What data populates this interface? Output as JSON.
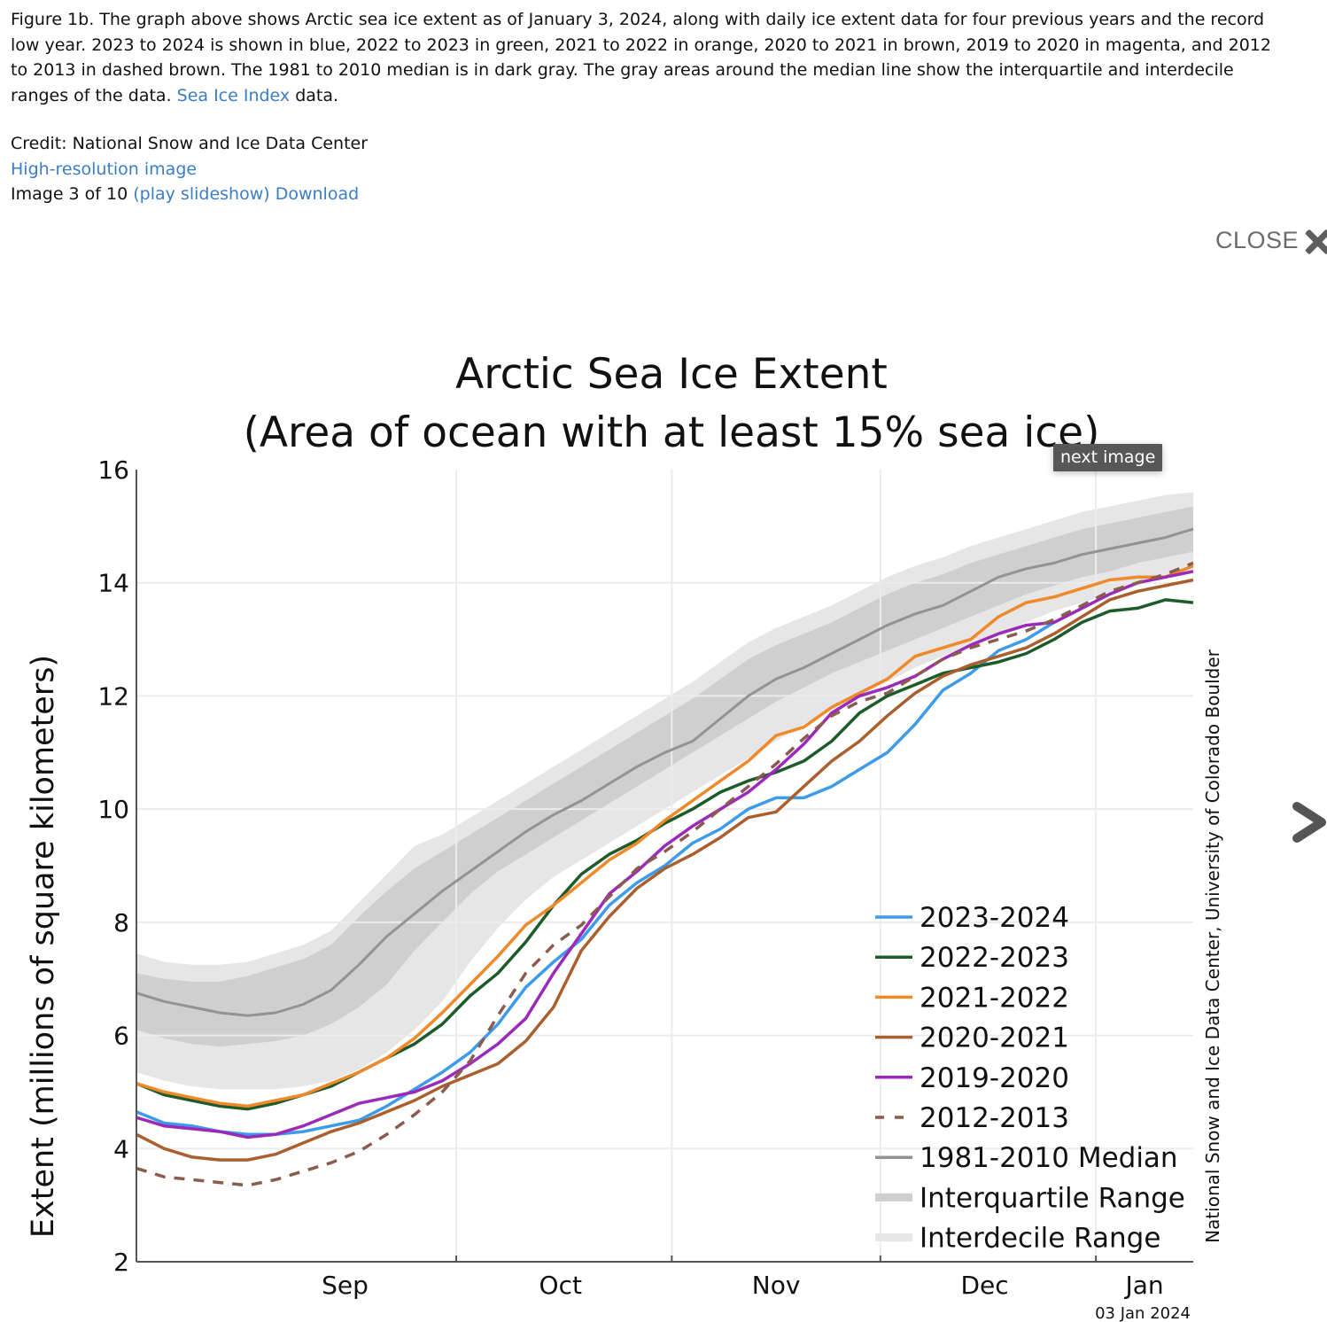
{
  "caption": {
    "text_before_link": "Figure 1b. The graph above shows Arctic sea ice extent as of January 3, 2024, along with daily ice extent data for four previous years and the record low year. 2023 to 2024 is shown in blue, 2022 to 2023 in green, 2021 to 2022 in orange, 2020 to 2021 in brown, 2019 to 2020 in magenta, and 2012 to 2013 in dashed brown. The 1981 to 2010 median is in dark gray. The gray areas around the median line show the interquartile and interdecile ranges of the data. ",
    "link_label": "Sea Ice Index",
    "text_after_link": " data."
  },
  "credit": {
    "line": "Credit: National Snow and Ice Data Center",
    "high_res_link": "High-resolution image",
    "image_counter": "Image 3 of 10",
    "slideshow_link": "(play slideshow)",
    "download_link": "Download"
  },
  "viewer": {
    "close_label": "CLOSE",
    "close_icon": "close-x-icon",
    "next_icon": "chevron-right-icon",
    "tooltip": "next image"
  },
  "colors": {
    "s2023": "#3d9be9",
    "s2022": "#1d5b2a",
    "s2021": "#f0892a",
    "s2020": "#aa5f2f",
    "s2019": "#9b2ab8",
    "s2012": "#8a5c4f",
    "median": "#939393",
    "iqr": "#cfcfcf",
    "idr": "#e6e6e6",
    "link": "#3a7dc9"
  },
  "chart_data": {
    "type": "line",
    "title": "Arctic Sea Ice Extent",
    "subtitle": "(Area of ocean with at least 15% sea ice)",
    "xlabel": "",
    "ylabel": "Extent (millions of square kilometers)",
    "x_unit": "days since Sep 1",
    "xlim": [
      -16,
      136
    ],
    "ylim": [
      2,
      16
    ],
    "yticks": [
      2,
      4,
      6,
      8,
      10,
      12,
      14,
      16
    ],
    "xtick_boundaries": [
      30,
      61,
      91,
      122
    ],
    "month_labels": [
      {
        "label": "Sep",
        "center": 14
      },
      {
        "label": "Oct",
        "center": 45
      },
      {
        "label": "Nov",
        "center": 76
      },
      {
        "label": "Dec",
        "center": 106
      },
      {
        "label": "Jan",
        "center": 129
      }
    ],
    "grid": true,
    "legend_position": "lower-right",
    "date_stamp": "03 Jan 2024",
    "source_credit": "National Snow and Ice Data Center, University of Colorado Boulder",
    "x": [
      -16,
      -12,
      -8,
      -4,
      0,
      4,
      8,
      12,
      16,
      20,
      24,
      28,
      32,
      36,
      40,
      44,
      48,
      52,
      56,
      60,
      64,
      68,
      72,
      76,
      80,
      84,
      88,
      92,
      96,
      100,
      104,
      108,
      112,
      116,
      120,
      124,
      128,
      132,
      136
    ],
    "bands": {
      "interdecile": {
        "name": "Interdecile Range",
        "lower": [
          5.35,
          5.2,
          5.1,
          5.05,
          5.05,
          5.05,
          5.1,
          5.2,
          5.4,
          5.7,
          6.1,
          6.6,
          7.3,
          7.9,
          8.4,
          8.8,
          9.1,
          9.4,
          9.7,
          10.0,
          10.3,
          10.6,
          10.9,
          11.2,
          11.5,
          11.75,
          12.0,
          12.25,
          12.5,
          12.7,
          12.9,
          13.1,
          13.3,
          13.5,
          13.65,
          13.8,
          13.95,
          14.1,
          14.25
        ],
        "upper": [
          7.45,
          7.3,
          7.25,
          7.25,
          7.3,
          7.45,
          7.6,
          7.85,
          8.35,
          8.85,
          9.35,
          9.55,
          9.85,
          10.15,
          10.45,
          10.75,
          11.05,
          11.35,
          11.65,
          11.95,
          12.25,
          12.6,
          12.95,
          13.2,
          13.4,
          13.6,
          13.85,
          14.1,
          14.3,
          14.45,
          14.65,
          14.8,
          14.95,
          15.1,
          15.25,
          15.35,
          15.45,
          15.55,
          15.6
        ]
      },
      "interquartile": {
        "name": "Interquartile Range",
        "lower": [
          6.1,
          5.95,
          5.85,
          5.8,
          5.85,
          5.9,
          6.0,
          6.2,
          6.5,
          6.9,
          7.5,
          8.0,
          8.5,
          8.9,
          9.2,
          9.5,
          9.8,
          10.1,
          10.4,
          10.7,
          11.0,
          11.3,
          11.6,
          11.9,
          12.15,
          12.4,
          12.6,
          12.8,
          13.0,
          13.2,
          13.4,
          13.6,
          13.8,
          13.95,
          14.1,
          14.2,
          14.35,
          14.45,
          14.55
        ],
        "upper": [
          7.1,
          7.0,
          6.95,
          6.95,
          7.05,
          7.2,
          7.35,
          7.6,
          8.1,
          8.55,
          8.95,
          9.25,
          9.55,
          9.85,
          10.15,
          10.45,
          10.75,
          11.05,
          11.35,
          11.65,
          11.95,
          12.3,
          12.65,
          12.9,
          13.1,
          13.3,
          13.55,
          13.8,
          14.0,
          14.15,
          14.35,
          14.5,
          14.65,
          14.8,
          14.95,
          15.05,
          15.15,
          15.25,
          15.35
        ]
      }
    },
    "series": [
      {
        "name": "1981-2010 Median",
        "key": "median",
        "dash": false,
        "values": [
          6.75,
          6.6,
          6.5,
          6.4,
          6.35,
          6.4,
          6.55,
          6.8,
          7.25,
          7.75,
          8.15,
          8.55,
          8.9,
          9.25,
          9.6,
          9.9,
          10.15,
          10.45,
          10.75,
          11.0,
          11.2,
          11.6,
          12.0,
          12.3,
          12.5,
          12.75,
          13.0,
          13.25,
          13.45,
          13.6,
          13.85,
          14.1,
          14.25,
          14.35,
          14.5,
          14.6,
          14.7,
          14.8,
          14.95
        ]
      },
      {
        "name": "2023-2024",
        "key": "s2023",
        "dash": false,
        "values": [
          4.65,
          4.45,
          4.4,
          4.3,
          4.25,
          4.25,
          4.3,
          4.4,
          4.5,
          4.75,
          5.05,
          5.35,
          5.7,
          6.2,
          6.85,
          7.3,
          7.7,
          8.3,
          8.7,
          9.0,
          9.4,
          9.65,
          10.0,
          10.2,
          10.2,
          10.4,
          10.7,
          11.0,
          11.5,
          12.1,
          12.4,
          12.8,
          13.0,
          13.3,
          null,
          null,
          null,
          null,
          null
        ]
      },
      {
        "name": "2022-2023",
        "key": "s2022",
        "dash": false,
        "values": [
          5.15,
          4.95,
          4.85,
          4.75,
          4.7,
          4.8,
          4.95,
          5.1,
          5.35,
          5.6,
          5.85,
          6.2,
          6.7,
          7.1,
          7.65,
          8.3,
          8.85,
          9.2,
          9.45,
          9.75,
          10.0,
          10.3,
          10.5,
          10.65,
          10.85,
          11.2,
          11.7,
          12.0,
          12.2,
          12.4,
          12.5,
          12.6,
          12.75,
          13.0,
          13.3,
          13.5,
          13.55,
          13.7,
          13.65
        ]
      },
      {
        "name": "2021-2022",
        "key": "s2021",
        "dash": false,
        "values": [
          5.15,
          5.0,
          4.9,
          4.8,
          4.75,
          4.85,
          4.95,
          5.15,
          5.35,
          5.6,
          5.95,
          6.4,
          6.9,
          7.4,
          7.95,
          8.3,
          8.7,
          9.1,
          9.4,
          9.8,
          10.15,
          10.5,
          10.85,
          11.3,
          11.45,
          11.8,
          12.05,
          12.3,
          12.7,
          12.85,
          13.0,
          13.4,
          13.65,
          13.75,
          13.9,
          14.05,
          14.1,
          14.1,
          14.3
        ]
      },
      {
        "name": "2020-2021",
        "key": "s2020",
        "dash": false,
        "values": [
          4.25,
          4.0,
          3.85,
          3.8,
          3.8,
          3.9,
          4.1,
          4.3,
          4.45,
          4.65,
          4.85,
          5.1,
          5.3,
          5.5,
          5.9,
          6.5,
          7.5,
          8.1,
          8.6,
          8.95,
          9.2,
          9.5,
          9.85,
          9.95,
          10.4,
          10.85,
          11.2,
          11.65,
          12.05,
          12.35,
          12.55,
          12.7,
          12.85,
          13.1,
          13.4,
          13.7,
          13.85,
          13.95,
          14.05
        ]
      },
      {
        "name": "2019-2020",
        "key": "s2019",
        "dash": false,
        "values": [
          4.55,
          4.4,
          4.35,
          4.3,
          4.2,
          4.25,
          4.4,
          4.6,
          4.8,
          4.9,
          5.0,
          5.2,
          5.5,
          5.85,
          6.3,
          7.1,
          7.8,
          8.5,
          8.9,
          9.35,
          9.7,
          10.0,
          10.3,
          10.7,
          11.15,
          11.7,
          12.0,
          12.15,
          12.35,
          12.65,
          12.9,
          13.1,
          13.25,
          13.3,
          13.55,
          13.8,
          14.0,
          14.1,
          14.2
        ]
      },
      {
        "name": "2012-2013",
        "key": "s2012",
        "dash": true,
        "values": [
          3.65,
          3.5,
          3.45,
          3.4,
          3.35,
          3.45,
          3.6,
          3.75,
          3.95,
          4.25,
          4.6,
          5.0,
          5.55,
          6.35,
          7.1,
          7.6,
          7.95,
          8.45,
          8.95,
          9.25,
          9.6,
          10.0,
          10.4,
          10.8,
          11.25,
          11.65,
          11.9,
          12.05,
          12.35,
          12.65,
          12.85,
          13.0,
          13.15,
          13.35,
          13.6,
          13.85,
          14.0,
          14.15,
          14.35
        ]
      }
    ],
    "legend": [
      {
        "label": "2023-2024",
        "key": "s2023",
        "kind": "line"
      },
      {
        "label": "2022-2023",
        "key": "s2022",
        "kind": "line"
      },
      {
        "label": "2021-2022",
        "key": "s2021",
        "kind": "line"
      },
      {
        "label": "2020-2021",
        "key": "s2020",
        "kind": "line"
      },
      {
        "label": "2019-2020",
        "key": "s2019",
        "kind": "line"
      },
      {
        "label": "2012-2013",
        "key": "s2012",
        "kind": "dash"
      },
      {
        "label": "1981-2010 Median",
        "key": "median",
        "kind": "line"
      },
      {
        "label": "Interquartile Range",
        "key": "iqr",
        "kind": "band"
      },
      {
        "label": "Interdecile Range",
        "key": "idr",
        "kind": "band"
      }
    ]
  }
}
